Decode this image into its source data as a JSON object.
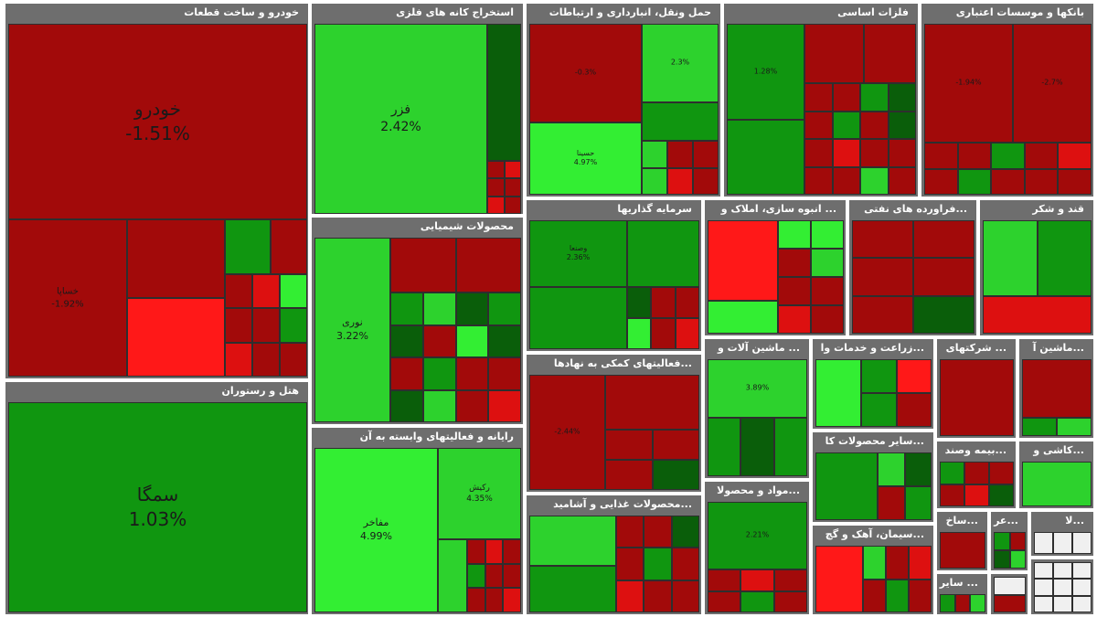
{
  "chart_data": {
    "type": "treemap",
    "colors": {
      "dark_red": "#a20a0a",
      "red": "#dd1010",
      "bright_red": "#ff1818",
      "dark_green": "#0a5e0a",
      "green": "#109610",
      "light_green": "#2dd22d",
      "bright_green": "#33ee33",
      "header": "#6e6e6e"
    },
    "sectors": [
      {
        "name": "خودرو و ساخت قطعات",
        "tiles": [
          {
            "label": "خودرو",
            "change": "-1.51%"
          },
          {
            "label": "خساپا",
            "change": "-1.92%"
          },
          {
            "label": "",
            "change": ""
          },
          {
            "label": "",
            "change": ""
          }
        ]
      },
      {
        "name": "هتل و رستوران",
        "tiles": [
          {
            "label": "سمگا",
            "change": "1.03%"
          }
        ]
      },
      {
        "name": "استخراج کانه های فلزی",
        "tiles": [
          {
            "label": "فزر",
            "change": "2.42%"
          }
        ]
      },
      {
        "name": "محصولات شیمیایی",
        "tiles": [
          {
            "label": "نوری",
            "change": "3.22%"
          }
        ]
      },
      {
        "name": "رایانه و فعالیتهای وابسته به آن",
        "tiles": [
          {
            "label": "مفاخر",
            "change": "4.99%"
          },
          {
            "label": "رکیش",
            "change": "4.35%"
          }
        ]
      },
      {
        "name": "حمل ونقل، انبارداری و ارتباطات",
        "tiles": [
          {
            "label": "",
            "change": "-0.3%"
          },
          {
            "label": "حسینا",
            "change": "4.97%"
          },
          {
            "label": "",
            "change": "2.3%"
          }
        ]
      },
      {
        "name": "سرمایه گذاریها",
        "tiles": [
          {
            "label": "وصنعا",
            "change": "2.36%"
          },
          {
            "label": "",
            "change": ""
          },
          {
            "label": "",
            "change": ""
          }
        ]
      },
      {
        "name": "...فعالیتهای کمکی به نهادها",
        "tiles": [
          {
            "label": "",
            "change": "-2.44%"
          }
        ]
      },
      {
        "name": "...محصولات غذایی و آشامید",
        "tiles": []
      },
      {
        "name": "فلزات اساسی",
        "tiles": [
          {
            "label": "",
            "change": "1.28%"
          }
        ]
      },
      {
        "name": "بانکها و موسسات اعتباری",
        "tiles": [
          {
            "label": "",
            "change": "-1.94%"
          },
          {
            "label": "",
            "change": "-2.7%"
          }
        ]
      },
      {
        "name": "... انبوه سازی، املاک و",
        "tiles": []
      },
      {
        "name": "...فراورده های نفتی",
        "tiles": []
      },
      {
        "name": "قند و شکر",
        "tiles": []
      },
      {
        "name": "... ماشین آلات و",
        "tiles": [
          {
            "label": "",
            "change": "3.89%"
          }
        ]
      },
      {
        "name": "...زراعت و خدمات وا",
        "tiles": []
      },
      {
        "name": "... شرکتهای",
        "tiles": []
      },
      {
        "name": "...ماشین آ",
        "tiles": []
      },
      {
        "name": "...سایر محصولات کا",
        "tiles": []
      },
      {
        "name": "...بیمه وصند",
        "tiles": []
      },
      {
        "name": "...کاشی و",
        "tiles": []
      },
      {
        "name": "...مواد و محصولا",
        "tiles": [
          {
            "label": "",
            "change": "2.21%"
          }
        ]
      },
      {
        "name": "...سیمان، آهک و گچ",
        "tiles": []
      },
      {
        "name": "...ساخ",
        "tiles": []
      },
      {
        "name": "...عر",
        "tiles": []
      },
      {
        "name": "...لا",
        "tiles": []
      },
      {
        "name": "... سایر",
        "tiles": []
      }
    ]
  }
}
